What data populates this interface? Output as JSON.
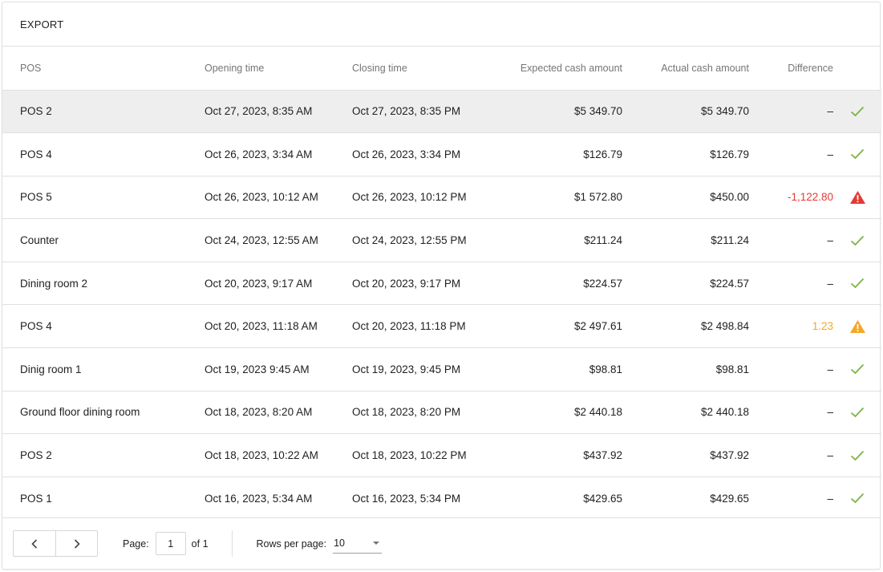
{
  "toolbar": {
    "export_label": "EXPORT"
  },
  "columns": {
    "pos": "POS",
    "opening": "Opening time",
    "closing": "Closing time",
    "expected": "Expected cash amount",
    "actual": "Actual cash amount",
    "difference": "Difference"
  },
  "rows": [
    {
      "pos": "POS 2",
      "opening": "Oct 27, 2023, 8:35 AM",
      "closing": "Oct 27, 2023, 8:35 PM",
      "expected": "$5 349.70",
      "actual": "$5 349.70",
      "difference": "–",
      "status": "ok"
    },
    {
      "pos": "POS 4",
      "opening": "Oct 26, 2023, 3:34 AM",
      "closing": "Oct 26, 2023, 3:34 PM",
      "expected": "$126.79",
      "actual": "$126.79",
      "difference": "–",
      "status": "ok"
    },
    {
      "pos": "POS 5",
      "opening": "Oct 26, 2023, 10:12 AM",
      "closing": "Oct 26, 2023, 10:12 PM",
      "expected": "$1 572.80",
      "actual": "$450.00",
      "difference": "-1,122.80",
      "status": "error"
    },
    {
      "pos": "Counter",
      "opening": "Oct 24, 2023, 12:55 AM",
      "closing": "Oct 24, 2023, 12:55 PM",
      "expected": "$211.24",
      "actual": "$211.24",
      "difference": "–",
      "status": "ok"
    },
    {
      "pos": "Dining room 2",
      "opening": "Oct 20, 2023, 9:17 AM",
      "closing": "Oct 20, 2023, 9:17 PM",
      "expected": "$224.57",
      "actual": "$224.57",
      "difference": "–",
      "status": "ok"
    },
    {
      "pos": "POS 4",
      "opening": "Oct 20, 2023, 11:18 AM",
      "closing": "Oct 20, 2023, 11:18 PM",
      "expected": "$2 497.61",
      "actual": "$2 498.84",
      "difference": "1.23",
      "status": "warning"
    },
    {
      "pos": "Dinig room 1",
      "opening": "Oct 19, 2023 9:45 AM",
      "closing": "Oct 19, 2023, 9:45 PM",
      "expected": "$98.81",
      "actual": "$98.81",
      "difference": "–",
      "status": "ok"
    },
    {
      "pos": "Ground floor dining room",
      "opening": "Oct 18, 2023, 8:20 AM",
      "closing": "Oct 18, 2023, 8:20 PM",
      "expected": "$2 440.18",
      "actual": "$2 440.18",
      "difference": "–",
      "status": "ok"
    },
    {
      "pos": "POS 2",
      "opening": "Oct 18, 2023, 10:22 AM",
      "closing": "Oct 18, 2023, 10:22 PM",
      "expected": "$437.92",
      "actual": "$437.92",
      "difference": "–",
      "status": "ok"
    },
    {
      "pos": "POS 1",
      "opening": "Oct 16, 2023, 5:34 AM",
      "closing": "Oct 16, 2023, 5:34 PM",
      "expected": "$429.65",
      "actual": "$429.65",
      "difference": "–",
      "status": "ok"
    }
  ],
  "status_icons": {
    "ok": "check-icon",
    "error": "alert-triangle-icon",
    "warning": "warning-triangle-icon"
  },
  "colors": {
    "ok": "#7cb342",
    "error": "#e53935",
    "warning": "#f5a623",
    "selected_row": "#eeeeee"
  },
  "pagination": {
    "page_label": "Page:",
    "page_value": "1",
    "of_label": "of 1",
    "rows_per_page_label": "Rows per page:",
    "rows_per_page_value": "10"
  }
}
